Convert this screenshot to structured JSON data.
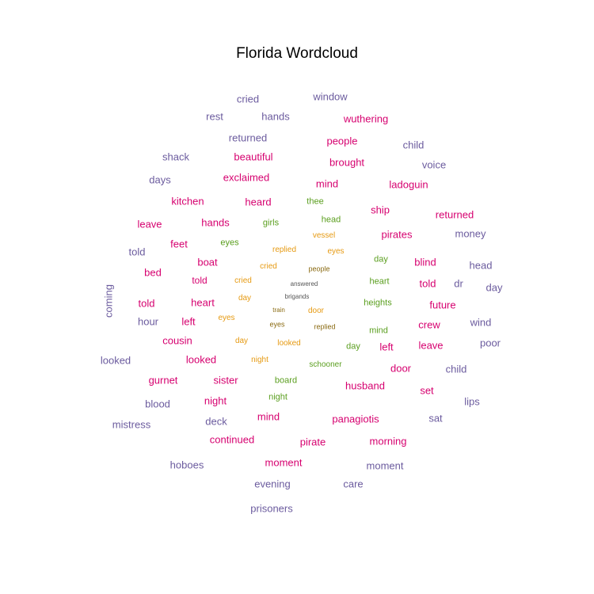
{
  "chart_data": {
    "type": "wordcloud",
    "title": "Florida Wordcloud",
    "palette": {
      "purple": "#6b5b9e",
      "magenta": "#d6006f",
      "green": "#5a9e1e",
      "orange": "#e69a12",
      "brown": "#8a6a12",
      "gray": "#555555"
    },
    "words": [
      {
        "text": "cried",
        "color": "purple"
      },
      {
        "text": "window",
        "color": "purple"
      },
      {
        "text": "rest",
        "color": "purple"
      },
      {
        "text": "hands",
        "color": "purple"
      },
      {
        "text": "wuthering",
        "color": "magenta"
      },
      {
        "text": "returned",
        "color": "purple"
      },
      {
        "text": "people",
        "color": "magenta"
      },
      {
        "text": "child",
        "color": "purple"
      },
      {
        "text": "shack",
        "color": "purple"
      },
      {
        "text": "beautiful",
        "color": "magenta"
      },
      {
        "text": "brought",
        "color": "magenta"
      },
      {
        "text": "voice",
        "color": "purple"
      },
      {
        "text": "days",
        "color": "purple"
      },
      {
        "text": "exclaimed",
        "color": "magenta"
      },
      {
        "text": "mind",
        "color": "magenta"
      },
      {
        "text": "ladoguin",
        "color": "magenta"
      },
      {
        "text": "kitchen",
        "color": "magenta"
      },
      {
        "text": "heard",
        "color": "magenta"
      },
      {
        "text": "thee",
        "color": "green"
      },
      {
        "text": "ship",
        "color": "magenta"
      },
      {
        "text": "returned",
        "color": "magenta"
      },
      {
        "text": "leave",
        "color": "magenta"
      },
      {
        "text": "hands",
        "color": "magenta"
      },
      {
        "text": "girls",
        "color": "green"
      },
      {
        "text": "head",
        "color": "green"
      },
      {
        "text": "vessel",
        "color": "orange"
      },
      {
        "text": "pirates",
        "color": "magenta"
      },
      {
        "text": "money",
        "color": "purple"
      },
      {
        "text": "feet",
        "color": "magenta"
      },
      {
        "text": "eyes",
        "color": "green"
      },
      {
        "text": "replied",
        "color": "orange"
      },
      {
        "text": "eyes",
        "color": "orange"
      },
      {
        "text": "told",
        "color": "purple"
      },
      {
        "text": "boat",
        "color": "magenta"
      },
      {
        "text": "cried",
        "color": "orange"
      },
      {
        "text": "people",
        "color": "brown"
      },
      {
        "text": "day",
        "color": "green"
      },
      {
        "text": "blind",
        "color": "magenta"
      },
      {
        "text": "head",
        "color": "purple"
      },
      {
        "text": "bed",
        "color": "magenta"
      },
      {
        "text": "told",
        "color": "magenta"
      },
      {
        "text": "cried",
        "color": "orange"
      },
      {
        "text": "answered",
        "color": "gray"
      },
      {
        "text": "heart",
        "color": "green"
      },
      {
        "text": "told",
        "color": "magenta"
      },
      {
        "text": "dr",
        "color": "purple"
      },
      {
        "text": "day",
        "color": "purple"
      },
      {
        "text": "coming",
        "color": "purple"
      },
      {
        "text": "brigands",
        "color": "gray"
      },
      {
        "text": "told",
        "color": "magenta"
      },
      {
        "text": "heart",
        "color": "magenta"
      },
      {
        "text": "day",
        "color": "orange"
      },
      {
        "text": "heights",
        "color": "green"
      },
      {
        "text": "future",
        "color": "magenta"
      },
      {
        "text": "train",
        "color": "brown"
      },
      {
        "text": "door",
        "color": "orange"
      },
      {
        "text": "hour",
        "color": "purple"
      },
      {
        "text": "left",
        "color": "magenta"
      },
      {
        "text": "eyes",
        "color": "orange"
      },
      {
        "text": "eyes",
        "color": "brown"
      },
      {
        "text": "replied",
        "color": "brown"
      },
      {
        "text": "crew",
        "color": "magenta"
      },
      {
        "text": "wind",
        "color": "purple"
      },
      {
        "text": "mind",
        "color": "green"
      },
      {
        "text": "cousin",
        "color": "magenta"
      },
      {
        "text": "day",
        "color": "orange"
      },
      {
        "text": "looked",
        "color": "orange"
      },
      {
        "text": "day",
        "color": "green"
      },
      {
        "text": "left",
        "color": "magenta"
      },
      {
        "text": "leave",
        "color": "magenta"
      },
      {
        "text": "poor",
        "color": "purple"
      },
      {
        "text": "looked",
        "color": "purple"
      },
      {
        "text": "looked",
        "color": "magenta"
      },
      {
        "text": "night",
        "color": "orange"
      },
      {
        "text": "schooner",
        "color": "green"
      },
      {
        "text": "door",
        "color": "magenta"
      },
      {
        "text": "child",
        "color": "purple"
      },
      {
        "text": "gurnet",
        "color": "magenta"
      },
      {
        "text": "sister",
        "color": "magenta"
      },
      {
        "text": "board",
        "color": "green"
      },
      {
        "text": "husband",
        "color": "magenta"
      },
      {
        "text": "set",
        "color": "magenta"
      },
      {
        "text": "blood",
        "color": "purple"
      },
      {
        "text": "night",
        "color": "magenta"
      },
      {
        "text": "night",
        "color": "green"
      },
      {
        "text": "lips",
        "color": "purple"
      },
      {
        "text": "mistress",
        "color": "purple"
      },
      {
        "text": "deck",
        "color": "purple"
      },
      {
        "text": "mind",
        "color": "magenta"
      },
      {
        "text": "panagiotis",
        "color": "magenta"
      },
      {
        "text": "sat",
        "color": "purple"
      },
      {
        "text": "continued",
        "color": "magenta"
      },
      {
        "text": "pirate",
        "color": "magenta"
      },
      {
        "text": "morning",
        "color": "magenta"
      },
      {
        "text": "hoboes",
        "color": "purple"
      },
      {
        "text": "moment",
        "color": "magenta"
      },
      {
        "text": "moment",
        "color": "purple"
      },
      {
        "text": "evening",
        "color": "purple"
      },
      {
        "text": "care",
        "color": "purple"
      },
      {
        "text": "prisoners",
        "color": "purple"
      }
    ]
  }
}
